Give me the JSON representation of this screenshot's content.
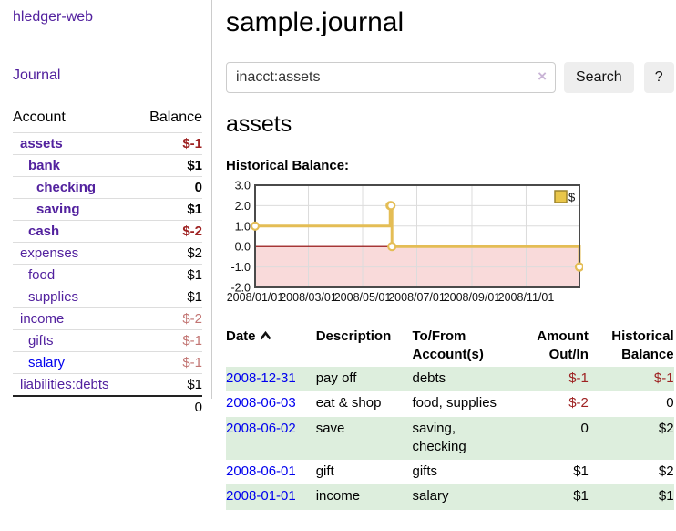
{
  "app": {
    "brand": "hledger-web"
  },
  "sidebar": {
    "journal_link": "Journal",
    "accounts": {
      "col_account": "Account",
      "col_balance": "Balance",
      "rows": [
        {
          "name": "assets",
          "indent": 1,
          "strong": true,
          "balance": "$-1",
          "bal_style": "neg"
        },
        {
          "name": "bank",
          "indent": 2,
          "strong": true,
          "balance": "$1",
          "bal_style": "pos"
        },
        {
          "name": "checking",
          "indent": 3,
          "strong": true,
          "balance": "0",
          "bal_style": "pos"
        },
        {
          "name": "saving",
          "indent": 3,
          "strong": true,
          "balance": "$1",
          "bal_style": "pos"
        },
        {
          "name": "cash",
          "indent": 2,
          "strong": true,
          "balance": "$-2",
          "bal_style": "neg"
        },
        {
          "name": "expenses",
          "indent": 1,
          "strong": false,
          "balance": "$2",
          "bal_style": "pos"
        },
        {
          "name": "food",
          "indent": 2,
          "strong": false,
          "balance": "$1",
          "bal_style": "pos"
        },
        {
          "name": "supplies",
          "indent": 2,
          "strong": false,
          "balance": "$1",
          "bal_style": "pos"
        },
        {
          "name": "income",
          "indent": 1,
          "strong": false,
          "balance": "$-2",
          "bal_style": "neg-soft"
        },
        {
          "name": "gifts",
          "indent": 2,
          "strong": false,
          "balance": "$-1",
          "bal_style": "neg-soft"
        },
        {
          "name": "salary",
          "indent": 2,
          "strong": false,
          "balance": "$-1",
          "bal_style": "neg-soft",
          "link_style": "unvisited"
        },
        {
          "name": "liabilities:debts",
          "indent": 1,
          "strong": false,
          "balance": "$1",
          "bal_style": "pos"
        }
      ],
      "total": "0"
    }
  },
  "header": {
    "title": "sample.journal"
  },
  "search": {
    "query": "inacct:assets",
    "clear_icon": "×",
    "search_button": "Search",
    "help_button": "?"
  },
  "content": {
    "account_heading": "assets",
    "chart_heading": "Historical Balance:"
  },
  "chart_data": {
    "type": "line",
    "step": true,
    "title": "Historical Balance",
    "series": [
      {
        "name": "$",
        "color": "#e4bd55",
        "points": [
          [
            "2008-01-01",
            1
          ],
          [
            "2008-06-01",
            2
          ],
          [
            "2008-06-02",
            2
          ],
          [
            "2008-06-03",
            0
          ],
          [
            "2008-12-31",
            -1
          ]
        ]
      }
    ],
    "x_domain": [
      "2008-01-01",
      "2008-12-31"
    ],
    "y_domain": [
      -2,
      3
    ],
    "y_ticks": [
      {
        "v": 3,
        "label": "3.0"
      },
      {
        "v": 2,
        "label": "2.0"
      },
      {
        "v": 1,
        "label": "1.0"
      },
      {
        "v": 0,
        "label": "0.0"
      },
      {
        "v": -1,
        "label": "-1.0"
      },
      {
        "v": -2,
        "label": "-2.0"
      }
    ],
    "x_ticks": [
      {
        "d": "2008-01-01",
        "label": "2008/01/01"
      },
      {
        "d": "2008-03-01",
        "label": "2008/03/01"
      },
      {
        "d": "2008-05-01",
        "label": "2008/05/01"
      },
      {
        "d": "2008-07-01",
        "label": "2008/07/01"
      },
      {
        "d": "2008-09-01",
        "label": "2008/09/01"
      },
      {
        "d": "2008-11-01",
        "label": "2008/11/01"
      }
    ],
    "legend": {
      "label": "$",
      "position": "top-right"
    },
    "grid": true,
    "colors": {
      "negative_region": "#f9dada",
      "zero_line": "#8b0000",
      "grid": "#dcdcdc",
      "border": "#4a4a4a",
      "marker_fill": "#ffffff",
      "legend_fill": "#e9c64a",
      "legend_border": "#9c842c"
    }
  },
  "register": {
    "columns": [
      {
        "line1": "Date",
        "line2": "",
        "align": "left",
        "sort_indicator": "ascending"
      },
      {
        "line1": "Description",
        "line2": "",
        "align": "left"
      },
      {
        "line1": "To/From",
        "line2": "Account(s)",
        "align": "left"
      },
      {
        "line1": "Amount",
        "line2": "Out/In",
        "align": "right"
      },
      {
        "line1": "Historical",
        "line2": "Balance",
        "align": "right"
      }
    ],
    "rows": [
      {
        "date": "2008-12-31",
        "description": "pay off",
        "accounts": "debts",
        "amount": "$-1",
        "amount_neg": true,
        "balance": "$-1",
        "balance_neg": true
      },
      {
        "date": "2008-06-03",
        "description": "eat & shop",
        "accounts": "food, supplies",
        "amount": "$-2",
        "amount_neg": true,
        "balance": "0",
        "balance_neg": false
      },
      {
        "date": "2008-06-02",
        "description": "save",
        "accounts": "saving, checking",
        "amount": "0",
        "amount_neg": false,
        "balance": "$2",
        "balance_neg": false
      },
      {
        "date": "2008-06-01",
        "description": "gift",
        "accounts": "gifts",
        "amount": "$1",
        "amount_neg": false,
        "balance": "$2",
        "balance_neg": false
      },
      {
        "date": "2008-01-01",
        "description": "income",
        "accounts": "salary",
        "amount": "$1",
        "amount_neg": false,
        "balance": "$1",
        "balance_neg": false
      }
    ]
  },
  "colors": {
    "link_visited": "#52219e",
    "link_unvisited": "#0000ee",
    "negative_strong": "#9e2222",
    "negative_soft": "#c27573",
    "row_stripe_green": "#ddeedd",
    "accent_gold": "#e4bd55",
    "button_bg": "#eeeeee"
  }
}
